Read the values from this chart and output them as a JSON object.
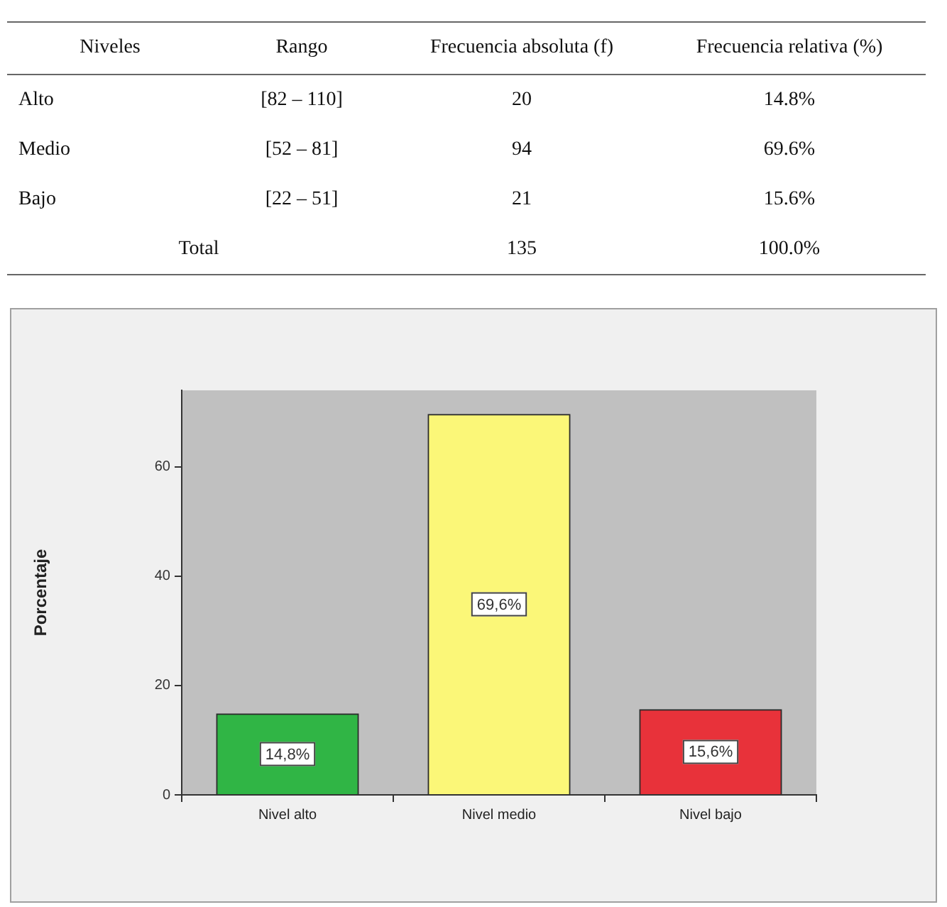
{
  "chart_data": [
    {
      "type": "other",
      "categories": [
        "Niveles",
        "Rango",
        "Frecuencia absoluta (f)",
        "Frecuencia relativa (%)"
      ],
      "cell_labels": [
        [
          "Alto",
          "[82 – 110]",
          "20",
          "14.8%"
        ],
        [
          "Medio",
          "[52 – 81]",
          "94",
          "69.6%"
        ],
        [
          "Bajo",
          "[22 – 51]",
          "21",
          "15.6%"
        ],
        [
          "Total",
          null,
          "135",
          "100.0%"
        ]
      ]
    },
    {
      "type": "bar",
      "ylabel": "Porcentaje",
      "categories": [
        "Nivel alto",
        "Nivel medio",
        "Nivel bajo"
      ],
      "values": [
        14.8,
        69.6,
        15.6
      ],
      "colors": [
        "#30b545",
        "#fbf778",
        "#e8323a"
      ],
      "value_labels": [
        "14,8%",
        "69,6%",
        "15,6%"
      ],
      "ylim": [
        0,
        74
      ],
      "yticks": [
        0,
        20,
        40,
        60
      ]
    }
  ]
}
